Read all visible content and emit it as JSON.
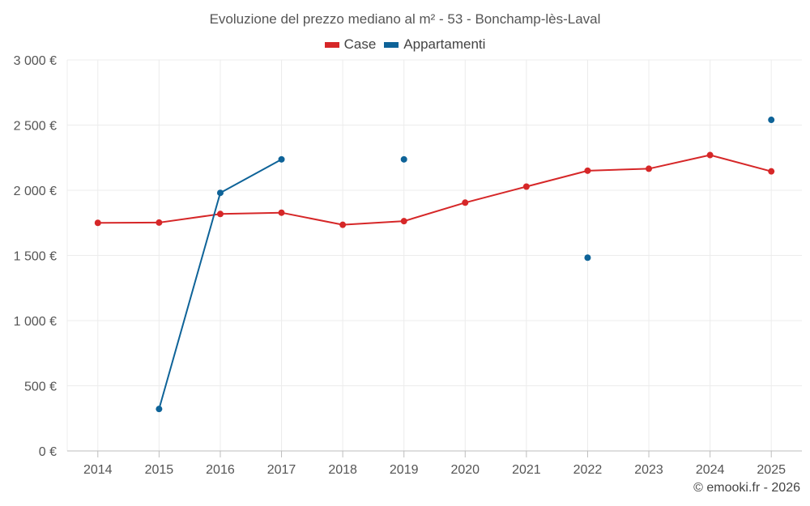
{
  "chart_data": {
    "type": "line",
    "title": "Evoluzione del prezzo mediano al m² - 53 - Bonchamp-lès-Laval",
    "categories": [
      "2014",
      "2015",
      "2016",
      "2017",
      "2018",
      "2019",
      "2020",
      "2021",
      "2022",
      "2023",
      "2024",
      "2025"
    ],
    "y_tick_labels": [
      "0 €",
      "500 €",
      "1 000 €",
      "1 500 €",
      "2 000 €",
      "2 500 €",
      "3 000 €"
    ],
    "y_ticks": [
      0,
      500,
      1000,
      1500,
      2000,
      2500,
      3000
    ],
    "ylim": [
      0,
      3000
    ],
    "xlabel": "",
    "ylabel": "",
    "grid": true,
    "legend_position": "top-center",
    "series": [
      {
        "name": "Case",
        "color": "#d62728",
        "values": [
          1750,
          1752,
          1818,
          1828,
          1735,
          1763,
          1905,
          2028,
          2150,
          2165,
          2270,
          2145
        ]
      },
      {
        "name": "Appartamenti",
        "color": "#0e6398",
        "values": [
          null,
          322,
          1980,
          2237,
          null,
          2237,
          null,
          null,
          1483,
          null,
          null,
          2540
        ]
      }
    ]
  },
  "credit": "© emooki.fr - 2026"
}
